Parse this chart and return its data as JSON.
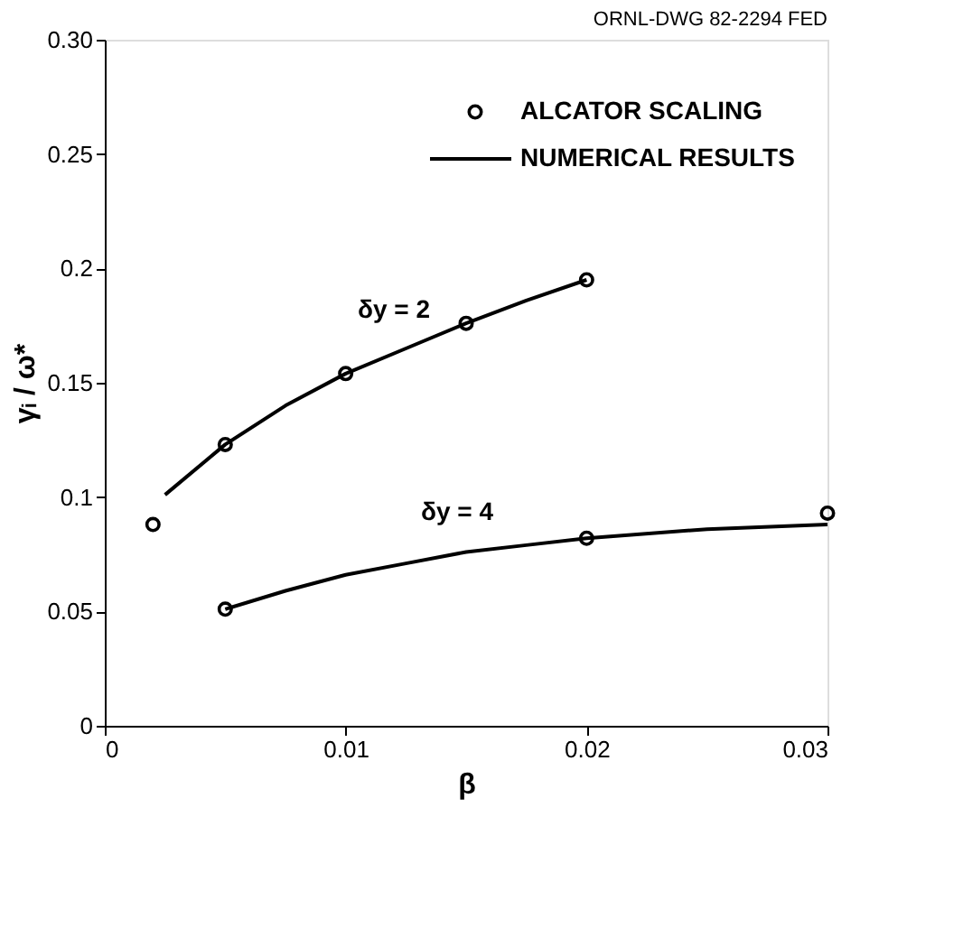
{
  "chart_data": {
    "type": "line",
    "xlabel": "β",
    "ylabel": "γᵢ / ω*",
    "xlim": [
      0,
      0.03
    ],
    "xticks": [
      0,
      0.01,
      0.02,
      0.03
    ],
    "ylim": [
      0,
      0.3
    ],
    "yticks": [
      0,
      0.05,
      0.1,
      0.15,
      0.2,
      0.25,
      {
        "value": 0.3,
        "label": "0.30"
      }
    ],
    "grid": false,
    "legend": "top right",
    "series": [
      {
        "name": "ALCATOR SCALING",
        "type": "scatter",
        "marker": "circle",
        "color": "#000000",
        "x": [
          0.002,
          0.005,
          0.01,
          0.015,
          0.02,
          0.005,
          0.02,
          0.03
        ],
        "values": [
          0.088,
          0.123,
          0.154,
          0.176,
          0.195,
          0.051,
          0.082,
          0.093
        ]
      },
      {
        "name": "NUMERICAL RESULTS",
        "line_style": "solid",
        "color": "#000000",
        "x": [
          0.0025,
          0.005,
          0.0075,
          0.01,
          0.0125,
          0.015,
          0.0175,
          0.02
        ],
        "values": [
          0.101,
          0.123,
          0.14,
          0.154,
          0.165,
          0.176,
          0.186,
          0.195
        ]
      },
      {
        "line_style": "solid",
        "color": "#000000",
        "x": [
          0.005,
          0.0075,
          0.01,
          0.0125,
          0.015,
          0.0175,
          0.02,
          0.025,
          0.03
        ],
        "values": [
          0.051,
          0.059,
          0.066,
          0.071,
          0.076,
          0.079,
          0.082,
          0.086,
          0.088
        ]
      }
    ],
    "annotations": [
      "δy = 2",
      "δy = 4",
      "ORNL-DWG 82-2294   FED"
    ]
  }
}
